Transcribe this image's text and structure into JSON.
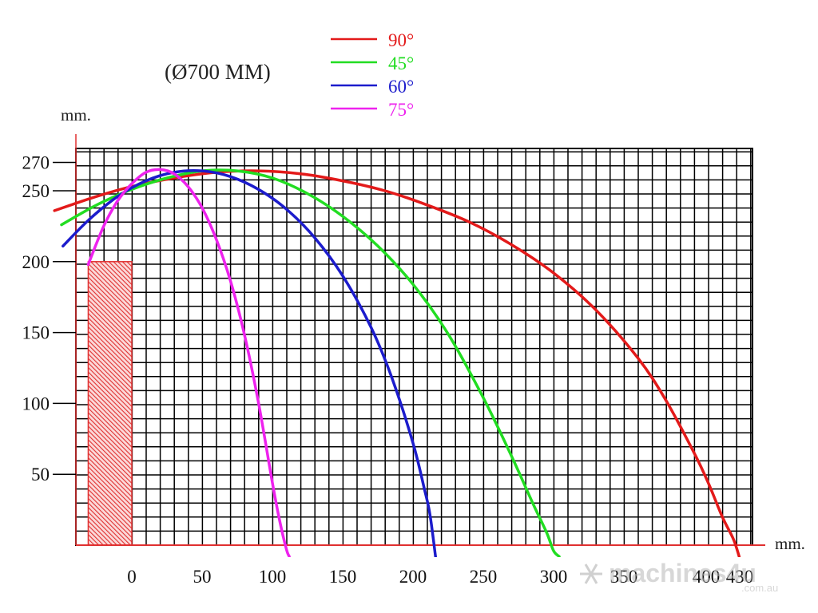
{
  "chart_data": {
    "type": "line",
    "title": "(Ø700 MM)",
    "xlabel": "mm.",
    "ylabel": "mm.",
    "xlim": [
      -40,
      440
    ],
    "ylim": [
      0,
      280
    ],
    "x_ticks": [
      0,
      50,
      100,
      150,
      200,
      250,
      300,
      350,
      400,
      430
    ],
    "y_ticks": [
      50,
      100,
      150,
      200,
      250,
      270
    ],
    "grid": true,
    "legend_position": "top-center",
    "obstacle": {
      "label": "hatched column",
      "x": [
        -31,
        0
      ],
      "y": [
        0,
        200
      ],
      "color": "#e03030"
    },
    "series": [
      {
        "name": "90°",
        "color": "#e31a1a",
        "x": [
          -55,
          -25,
          0,
          30,
          60,
          90,
          120,
          150,
          180,
          210,
          240,
          270,
          300,
          330,
          360,
          380,
          400,
          410,
          420,
          428,
          432
        ],
        "y": [
          236,
          246,
          253,
          259,
          263,
          264,
          262,
          257,
          250,
          240,
          228,
          212,
          192,
          166,
          132,
          102,
          65,
          44,
          20,
          4,
          -8
        ]
      },
      {
        "name": "45°",
        "color": "#22dd22",
        "x": [
          -50,
          -25,
          0,
          25,
          50,
          75,
          100,
          125,
          150,
          175,
          200,
          225,
          250,
          270,
          285,
          295,
          300,
          304
        ],
        "y": [
          226,
          240,
          251,
          259,
          264,
          264,
          259,
          248,
          232,
          211,
          184,
          149,
          104,
          63,
          30,
          9,
          -4,
          -8
        ]
      },
      {
        "name": "60°",
        "color": "#1c1ccc",
        "x": [
          -49,
          -30,
          -10,
          10,
          30,
          50,
          70,
          90,
          110,
          130,
          150,
          170,
          185,
          200,
          208,
          212,
          216
        ],
        "y": [
          211,
          230,
          246,
          257,
          263,
          264,
          260,
          251,
          237,
          217,
          190,
          154,
          118,
          72,
          40,
          22,
          -8
        ]
      },
      {
        "name": "75°",
        "color": "#ee22ee",
        "x": [
          -31,
          -20,
          -10,
          0,
          10,
          20,
          30,
          40,
          50,
          60,
          70,
          80,
          90,
          100,
          105,
          110,
          112
        ],
        "y": [
          198,
          225,
          243,
          255,
          263,
          265,
          262,
          253,
          238,
          216,
          187,
          149,
          101,
          44,
          18,
          -3,
          -8
        ]
      }
    ]
  },
  "watermark": {
    "brand": "machines4u",
    "domain": ".com.au"
  }
}
